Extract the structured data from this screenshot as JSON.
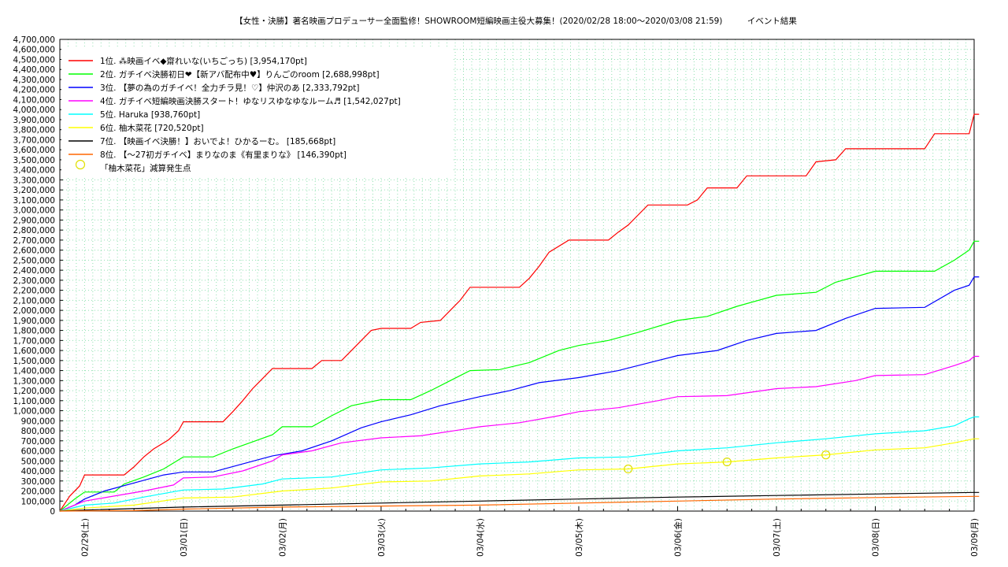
{
  "chart_data": {
    "type": "line",
    "title": "【女性・決勝】著名映画プロデューサー全面監修！SHOWROOM短編映画主役大募集！(2020/02/28 18:00〜2020/03/08 21:59)　　　イベント結果",
    "xlabel": "",
    "ylabel": "",
    "ylim": [
      0,
      4700000
    ],
    "y_ticks": [
      "0",
      "100,000",
      "200,000",
      "300,000",
      "400,000",
      "500,000",
      "600,000",
      "700,000",
      "800,000",
      "900,000",
      "1,000,000",
      "1,100,000",
      "1,200,000",
      "1,300,000",
      "1,400,000",
      "1,500,000",
      "1,600,000",
      "1,700,000",
      "1,800,000",
      "1,900,000",
      "2,000,000",
      "2,100,000",
      "2,200,000",
      "2,300,000",
      "2,400,000",
      "2,500,000",
      "2,600,000",
      "2,700,000",
      "2,800,000",
      "2,900,000",
      "3,000,000",
      "3,100,000",
      "3,200,000",
      "3,300,000",
      "3,400,000",
      "3,500,000",
      "3,600,000",
      "3,700,000",
      "3,800,000",
      "3,900,000",
      "4,000,000",
      "4,100,000",
      "4,200,000",
      "4,300,000",
      "4,400,000",
      "4,500,000",
      "4,600,000",
      "4,700,000"
    ],
    "xlim": [
      -0.25,
      9.0
    ],
    "x_tick_labels": [
      {
        "label": "02/29(土)",
        "x": 0
      },
      {
        "label": "03/01(日)",
        "x": 1
      },
      {
        "label": "03/02(月)",
        "x": 2
      },
      {
        "label": "03/03(火)",
        "x": 3
      },
      {
        "label": "03/04(水)",
        "x": 4
      },
      {
        "label": "03/05(木)",
        "x": 5
      },
      {
        "label": "03/06(金)",
        "x": 6
      },
      {
        "label": "03/07(土)",
        "x": 7
      },
      {
        "label": "03/08(日)",
        "x": 8
      },
      {
        "label": "03/09(月)",
        "x": 9
      }
    ],
    "grid": true,
    "legend_position": "top-left",
    "series": [
      {
        "name": "1位. ⁂映画イベ◆齋れいな(いちごっち) [3,954,170pt]",
        "color": "#ff0000",
        "points": [
          [
            -0.25,
            0
          ],
          [
            -0.15,
            150000
          ],
          [
            -0.05,
            250000
          ],
          [
            0,
            360000
          ],
          [
            0.4,
            360000
          ],
          [
            0.5,
            440000
          ],
          [
            0.6,
            540000
          ],
          [
            0.7,
            620000
          ],
          [
            0.85,
            710000
          ],
          [
            0.95,
            800000
          ],
          [
            1,
            890000
          ],
          [
            1.4,
            890000
          ],
          [
            1.5,
            990000
          ],
          [
            1.6,
            1100000
          ],
          [
            1.7,
            1220000
          ],
          [
            1.8,
            1320000
          ],
          [
            1.9,
            1420000
          ],
          [
            2.3,
            1420000
          ],
          [
            2.4,
            1500000
          ],
          [
            2.6,
            1500000
          ],
          [
            2.7,
            1600000
          ],
          [
            2.8,
            1700000
          ],
          [
            2.9,
            1800000
          ],
          [
            3,
            1820000
          ],
          [
            3.3,
            1820000
          ],
          [
            3.4,
            1880000
          ],
          [
            3.6,
            1900000
          ],
          [
            3.7,
            2000000
          ],
          [
            3.8,
            2100000
          ],
          [
            3.9,
            2230000
          ],
          [
            4.4,
            2230000
          ],
          [
            4.5,
            2320000
          ],
          [
            4.6,
            2440000
          ],
          [
            4.7,
            2580000
          ],
          [
            4.9,
            2700000
          ],
          [
            5.3,
            2700000
          ],
          [
            5.4,
            2780000
          ],
          [
            5.5,
            2850000
          ],
          [
            5.6,
            2950000
          ],
          [
            5.7,
            3050000
          ],
          [
            6.1,
            3050000
          ],
          [
            6.2,
            3100000
          ],
          [
            6.3,
            3220000
          ],
          [
            6.6,
            3220000
          ],
          [
            6.7,
            3340000
          ],
          [
            7.3,
            3340000
          ],
          [
            7.4,
            3480000
          ],
          [
            7.6,
            3500000
          ],
          [
            7.7,
            3610000
          ],
          [
            8.5,
            3610000
          ],
          [
            8.6,
            3760000
          ],
          [
            8.95,
            3760000
          ],
          [
            9,
            3954170
          ],
          [
            9.05,
            3954170
          ]
        ]
      },
      {
        "name": "2位. ガチイベ決勝初日❤【新アバ配布中♥】りんごのroom [2,688,998pt]",
        "color": "#00ff00",
        "points": [
          [
            -0.25,
            0
          ],
          [
            -0.1,
            120000
          ],
          [
            0,
            190000
          ],
          [
            0.3,
            190000
          ],
          [
            0.4,
            270000
          ],
          [
            0.6,
            340000
          ],
          [
            0.8,
            420000
          ],
          [
            1,
            540000
          ],
          [
            1.3,
            540000
          ],
          [
            1.5,
            620000
          ],
          [
            1.7,
            690000
          ],
          [
            1.9,
            760000
          ],
          [
            2,
            840000
          ],
          [
            2.3,
            840000
          ],
          [
            2.5,
            950000
          ],
          [
            2.7,
            1050000
          ],
          [
            3,
            1110000
          ],
          [
            3.3,
            1110000
          ],
          [
            3.5,
            1200000
          ],
          [
            3.7,
            1300000
          ],
          [
            3.9,
            1400000
          ],
          [
            4.2,
            1410000
          ],
          [
            4.5,
            1480000
          ],
          [
            4.8,
            1600000
          ],
          [
            5,
            1650000
          ],
          [
            5.3,
            1700000
          ],
          [
            5.6,
            1780000
          ],
          [
            6,
            1900000
          ],
          [
            6.3,
            1940000
          ],
          [
            6.6,
            2040000
          ],
          [
            7,
            2150000
          ],
          [
            7.4,
            2180000
          ],
          [
            7.6,
            2280000
          ],
          [
            8,
            2390000
          ],
          [
            8.6,
            2390000
          ],
          [
            8.8,
            2500000
          ],
          [
            8.95,
            2600000
          ],
          [
            9,
            2688998
          ],
          [
            9.05,
            2688998
          ]
        ]
      },
      {
        "name": "3位. 【夢の為のガチイベ！全力チラ見！♡】仲沢のあ [2,333,792pt]",
        "color": "#0000ff",
        "points": [
          [
            -0.25,
            0
          ],
          [
            -0.1,
            60000
          ],
          [
            0,
            120000
          ],
          [
            0.2,
            200000
          ],
          [
            0.5,
            280000
          ],
          [
            0.8,
            360000
          ],
          [
            1,
            390000
          ],
          [
            1.3,
            390000
          ],
          [
            1.6,
            470000
          ],
          [
            1.9,
            550000
          ],
          [
            2.2,
            600000
          ],
          [
            2.5,
            700000
          ],
          [
            2.8,
            830000
          ],
          [
            3,
            890000
          ],
          [
            3.3,
            960000
          ],
          [
            3.6,
            1050000
          ],
          [
            4,
            1140000
          ],
          [
            4.3,
            1200000
          ],
          [
            4.6,
            1280000
          ],
          [
            5,
            1330000
          ],
          [
            5.4,
            1400000
          ],
          [
            5.8,
            1500000
          ],
          [
            6,
            1550000
          ],
          [
            6.4,
            1600000
          ],
          [
            6.7,
            1700000
          ],
          [
            7,
            1770000
          ],
          [
            7.4,
            1800000
          ],
          [
            7.7,
            1920000
          ],
          [
            8,
            2020000
          ],
          [
            8.5,
            2030000
          ],
          [
            8.8,
            2200000
          ],
          [
            8.95,
            2250000
          ],
          [
            9,
            2333792
          ],
          [
            9.05,
            2333792
          ]
        ]
      },
      {
        "name": "4位. ガチイベ短編映画決勝スタート！ゆなリスゆなゆなルーム♬ [1,542,027pt]",
        "color": "#ff00ff",
        "points": [
          [
            -0.25,
            0
          ],
          [
            -0.1,
            60000
          ],
          [
            0,
            100000
          ],
          [
            0.3,
            150000
          ],
          [
            0.6,
            200000
          ],
          [
            0.9,
            260000
          ],
          [
            1,
            330000
          ],
          [
            1.3,
            340000
          ],
          [
            1.6,
            400000
          ],
          [
            1.9,
            500000
          ],
          [
            2,
            560000
          ],
          [
            2.3,
            600000
          ],
          [
            2.6,
            680000
          ],
          [
            3,
            730000
          ],
          [
            3.4,
            750000
          ],
          [
            3.8,
            810000
          ],
          [
            4,
            840000
          ],
          [
            4.4,
            880000
          ],
          [
            4.8,
            950000
          ],
          [
            5,
            990000
          ],
          [
            5.4,
            1030000
          ],
          [
            5.8,
            1100000
          ],
          [
            6,
            1140000
          ],
          [
            6.5,
            1150000
          ],
          [
            7,
            1220000
          ],
          [
            7.4,
            1240000
          ],
          [
            7.8,
            1300000
          ],
          [
            8,
            1350000
          ],
          [
            8.5,
            1360000
          ],
          [
            8.8,
            1450000
          ],
          [
            8.95,
            1500000
          ],
          [
            9,
            1542027
          ],
          [
            9.05,
            1542027
          ]
        ]
      },
      {
        "name": "5位. Haruka [938,760pt]",
        "color": "#00ffff",
        "points": [
          [
            -0.25,
            0
          ],
          [
            0,
            60000
          ],
          [
            0.3,
            80000
          ],
          [
            0.6,
            140000
          ],
          [
            1,
            210000
          ],
          [
            1.4,
            220000
          ],
          [
            1.8,
            270000
          ],
          [
            2,
            320000
          ],
          [
            2.5,
            340000
          ],
          [
            3,
            410000
          ],
          [
            3.5,
            430000
          ],
          [
            4,
            470000
          ],
          [
            4.5,
            490000
          ],
          [
            5,
            530000
          ],
          [
            5.5,
            540000
          ],
          [
            6,
            600000
          ],
          [
            6.5,
            630000
          ],
          [
            7,
            680000
          ],
          [
            7.5,
            720000
          ],
          [
            8,
            770000
          ],
          [
            8.5,
            800000
          ],
          [
            8.8,
            850000
          ],
          [
            8.95,
            920000
          ],
          [
            9,
            938760
          ],
          [
            9.05,
            938760
          ]
        ]
      },
      {
        "name": "6位. 柚木菜花 [720,520pt]",
        "color": "#ffff00",
        "points": [
          [
            -0.25,
            0
          ],
          [
            0,
            30000
          ],
          [
            0.5,
            60000
          ],
          [
            1,
            130000
          ],
          [
            1.5,
            140000
          ],
          [
            2,
            200000
          ],
          [
            2.5,
            230000
          ],
          [
            3,
            290000
          ],
          [
            3.5,
            300000
          ],
          [
            4,
            350000
          ],
          [
            4.5,
            370000
          ],
          [
            5,
            410000
          ],
          [
            5.5,
            420000
          ],
          [
            6,
            470000
          ],
          [
            6.5,
            490000
          ],
          [
            7,
            530000
          ],
          [
            7.5,
            560000
          ],
          [
            8,
            610000
          ],
          [
            8.5,
            630000
          ],
          [
            8.8,
            680000
          ],
          [
            9,
            720520
          ],
          [
            9.05,
            720520
          ]
        ]
      },
      {
        "name": "7位. 【映画イベ決勝！】おいでよ！ひかるーむ。 [185,668pt]",
        "color": "#000000",
        "points": [
          [
            -0.25,
            0
          ],
          [
            0,
            10000
          ],
          [
            1,
            40000
          ],
          [
            2,
            60000
          ],
          [
            3,
            80000
          ],
          [
            4,
            100000
          ],
          [
            5,
            120000
          ],
          [
            6,
            140000
          ],
          [
            7,
            155000
          ],
          [
            8,
            170000
          ],
          [
            9,
            185668
          ],
          [
            9.05,
            185668
          ]
        ]
      },
      {
        "name": "8位. 【〜27初ガチイベ】まりなのま《有里まりな》 [146,390pt]",
        "color": "#ff6600",
        "points": [
          [
            -0.25,
            0
          ],
          [
            0.5,
            5000
          ],
          [
            1,
            20000
          ],
          [
            2,
            40000
          ],
          [
            3,
            50000
          ],
          [
            4,
            60000
          ],
          [
            5,
            80000
          ],
          [
            6,
            100000
          ],
          [
            7,
            120000
          ],
          [
            8,
            135000
          ],
          [
            9,
            146390
          ],
          [
            9.05,
            146390
          ]
        ]
      }
    ],
    "markers": {
      "name": "「柚木菜花」減算発生点",
      "color": "#ffff00",
      "points": [
        [
          5.5,
          420000
        ],
        [
          6.5,
          490000
        ],
        [
          7.5,
          560000
        ]
      ]
    }
  }
}
